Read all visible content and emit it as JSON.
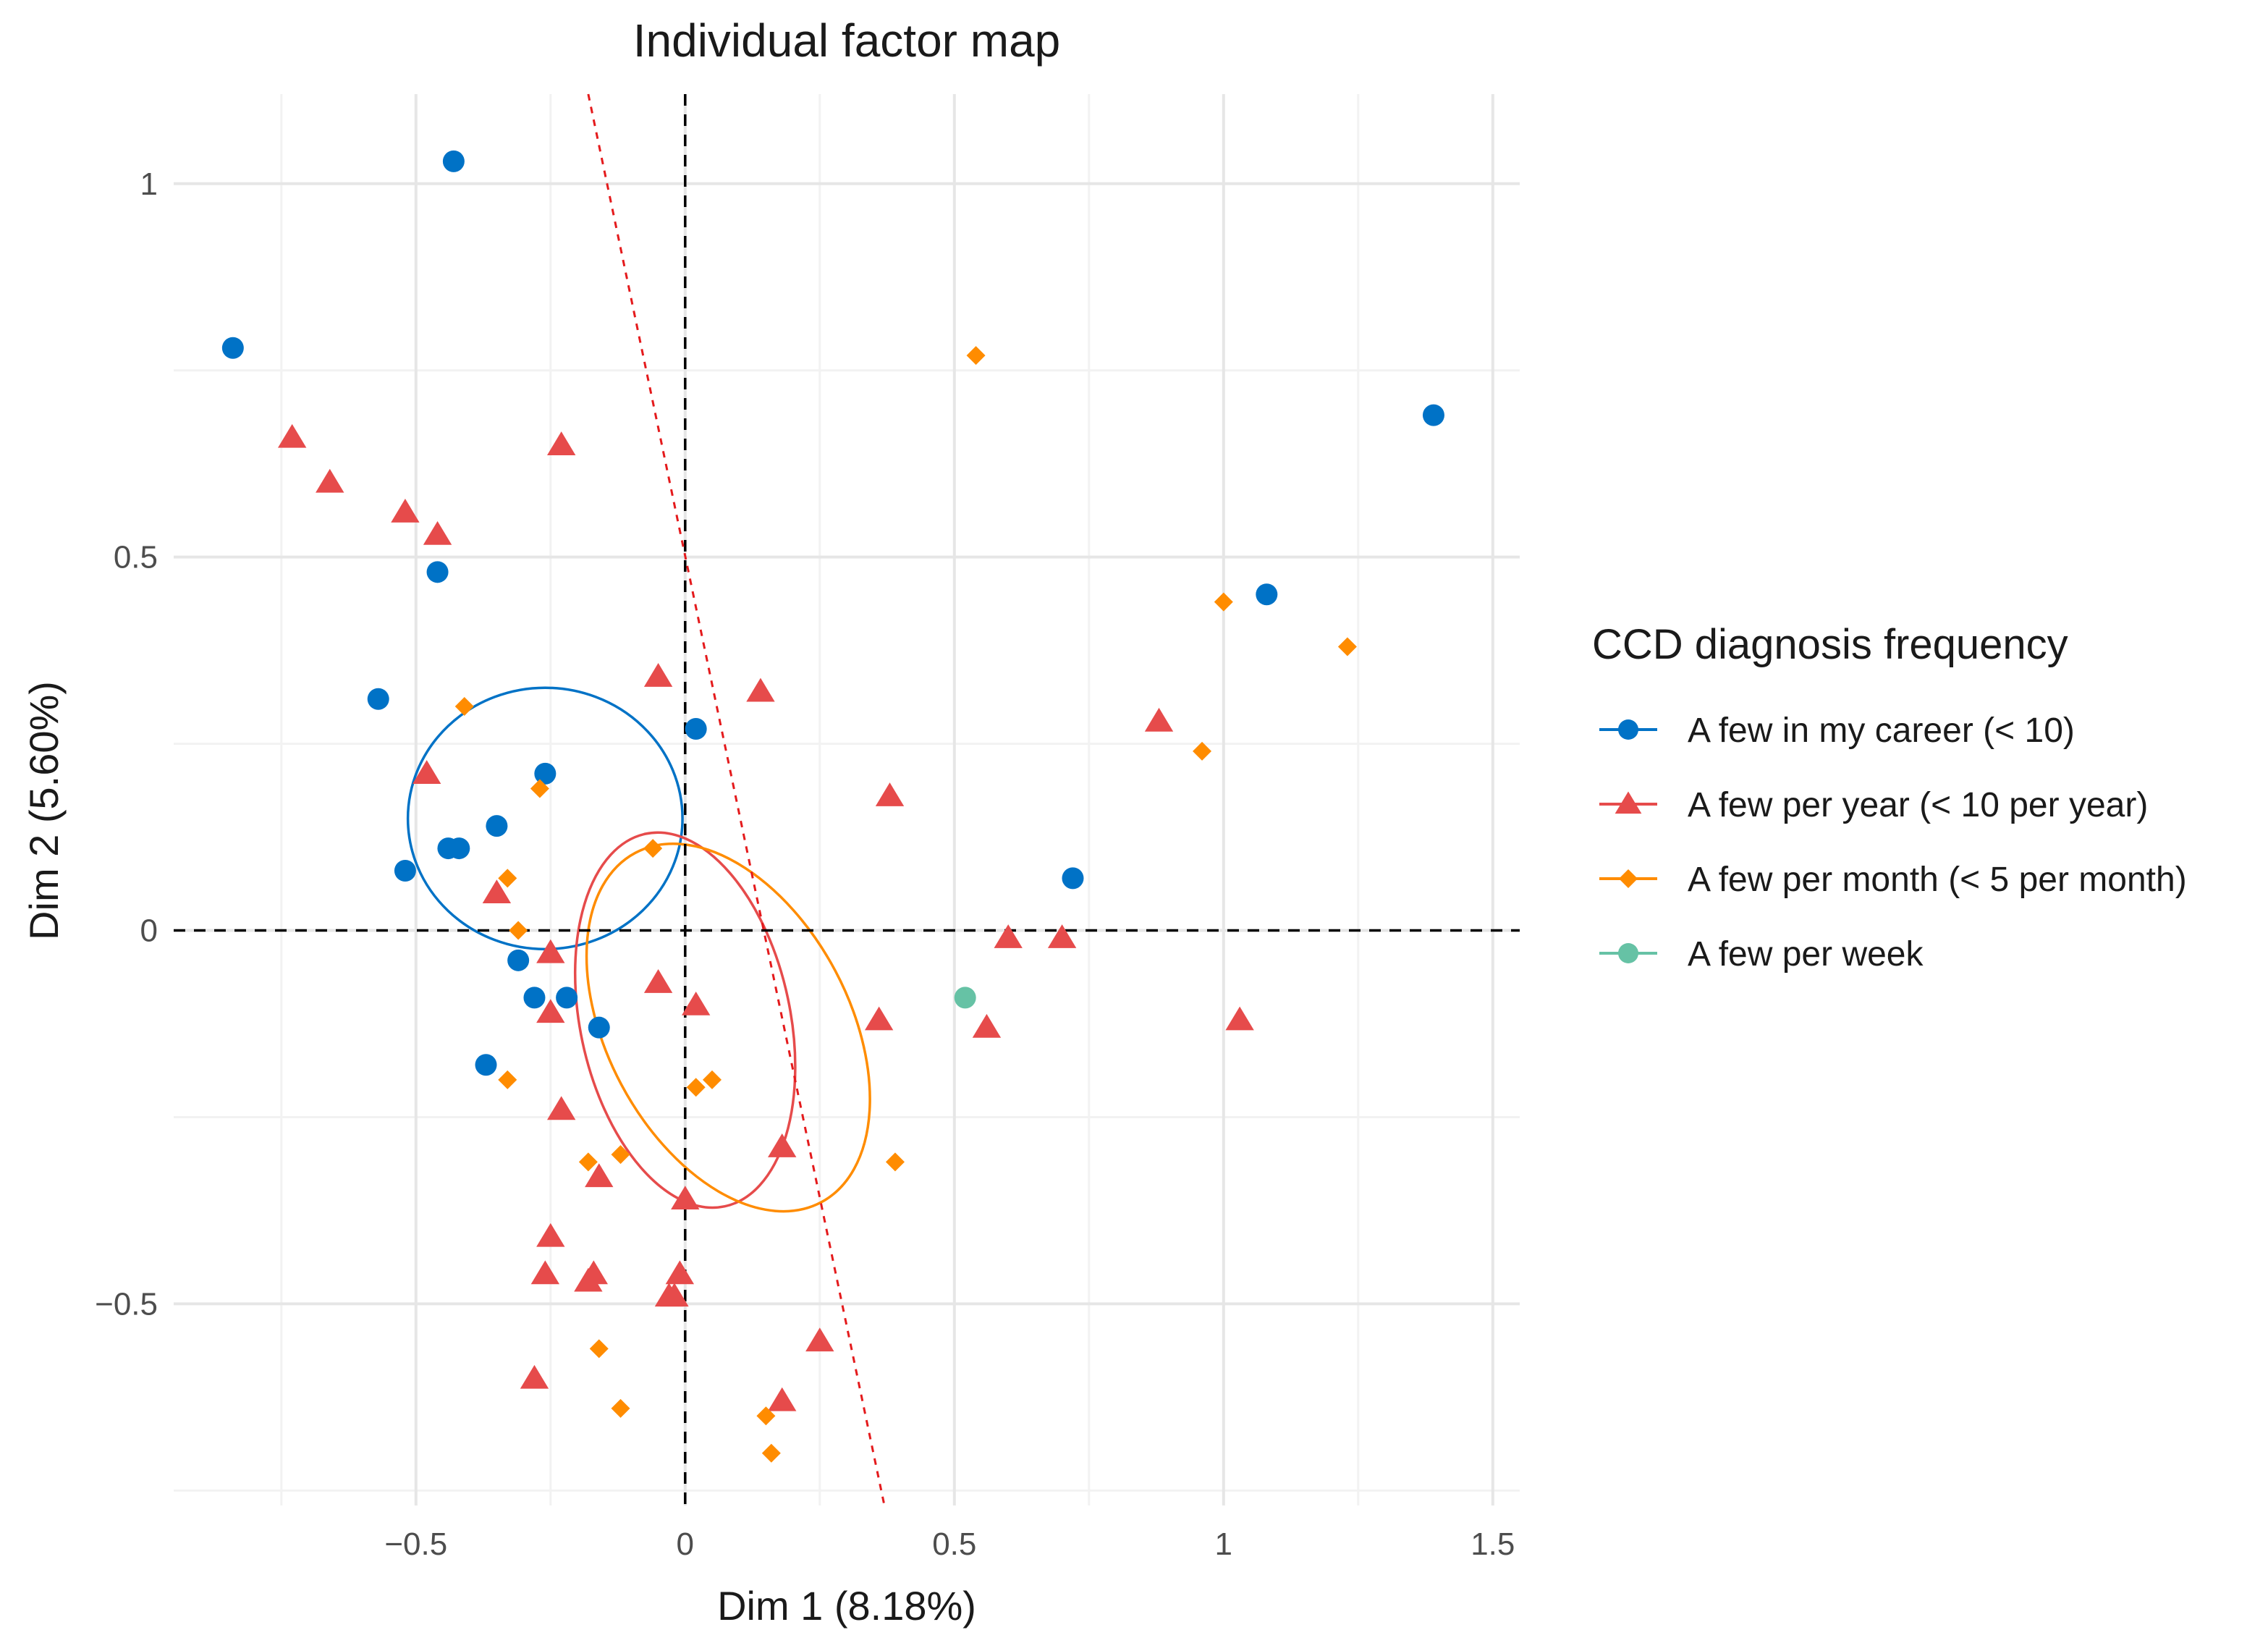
{
  "chart_data": {
    "type": "scatter",
    "title": "Individual factor map",
    "xlabel": "Dim 1 (8.18%)",
    "ylabel": "Dim 2 (5.60%)",
    "xlim": [
      -0.95,
      1.55
    ],
    "ylim": [
      -0.77,
      1.12
    ],
    "x_ticks": [
      -0.5,
      0,
      0.5,
      1,
      1.5
    ],
    "x_tick_labels": [
      "−0.5",
      "0",
      "0.5",
      "1",
      "1.5"
    ],
    "y_ticks": [
      -0.5,
      0,
      0.5,
      1
    ],
    "y_tick_labels": [
      "−0.5",
      "0",
      "0.5",
      "1"
    ],
    "grid": true,
    "legend": {
      "title": "CCD diagnosis frequency",
      "position": "right"
    },
    "reference_lines": [
      {
        "type": "hline",
        "value": 0,
        "style": "dashed",
        "color": "#000000"
      },
      {
        "type": "vline",
        "value": 0,
        "style": "dashed",
        "color": "#000000"
      },
      {
        "type": "segment",
        "from": [
          -0.18,
          1.12
        ],
        "to": [
          0.37,
          -0.77
        ],
        "style": "dotted",
        "color": "#e41a1c"
      }
    ],
    "series": [
      {
        "name": "A few in my career (< 10)",
        "color": "#0072c6",
        "marker": "circle",
        "points": [
          [
            -0.43,
            1.03
          ],
          [
            -0.84,
            0.78
          ],
          [
            1.39,
            0.69
          ],
          [
            1.08,
            0.45
          ],
          [
            -0.46,
            0.48
          ],
          [
            -0.57,
            0.31
          ],
          [
            0.02,
            0.27
          ],
          [
            -0.26,
            0.21
          ],
          [
            -0.35,
            0.14
          ],
          [
            -0.44,
            0.11
          ],
          [
            -0.42,
            0.11
          ],
          [
            -0.52,
            0.08
          ],
          [
            0.72,
            0.07
          ],
          [
            -0.31,
            -0.04
          ],
          [
            -0.28,
            -0.09
          ],
          [
            -0.22,
            -0.09
          ],
          [
            -0.16,
            -0.13
          ],
          [
            -0.37,
            -0.18
          ]
        ],
        "ellipse": {
          "center": [
            -0.26,
            0.15
          ],
          "rx": 0.255,
          "ry": 0.175,
          "angle_deg": 0
        }
      },
      {
        "name": "A few per year (< 10 per year)",
        "color": "#e64b4b",
        "marker": "triangle",
        "points": [
          [
            -0.73,
            0.66
          ],
          [
            -0.66,
            0.6
          ],
          [
            -0.52,
            0.56
          ],
          [
            -0.46,
            0.53
          ],
          [
            -0.23,
            0.65
          ],
          [
            -0.05,
            0.34
          ],
          [
            0.14,
            0.32
          ],
          [
            0.88,
            0.28
          ],
          [
            -0.48,
            0.21
          ],
          [
            0.38,
            0.18
          ],
          [
            -0.35,
            0.05
          ],
          [
            0.6,
            -0.01
          ],
          [
            0.7,
            -0.01
          ],
          [
            -0.25,
            -0.03
          ],
          [
            -0.05,
            -0.07
          ],
          [
            0.02,
            -0.1
          ],
          [
            -0.25,
            -0.11
          ],
          [
            0.36,
            -0.12
          ],
          [
            0.56,
            -0.13
          ],
          [
            1.03,
            -0.12
          ],
          [
            -0.23,
            -0.24
          ],
          [
            0.18,
            -0.29
          ],
          [
            -0.16,
            -0.33
          ],
          [
            0.0,
            -0.36
          ],
          [
            -0.25,
            -0.41
          ],
          [
            -0.26,
            -0.46
          ],
          [
            -0.17,
            -0.46
          ],
          [
            -0.18,
            -0.47
          ],
          [
            -0.01,
            -0.46
          ],
          [
            -0.02,
            -0.49
          ],
          [
            -0.03,
            -0.49
          ],
          [
            0.25,
            -0.55
          ],
          [
            -0.28,
            -0.6
          ],
          [
            0.18,
            -0.63
          ]
        ],
        "ellipse": {
          "center": [
            0.0,
            -0.12
          ],
          "rx": 0.195,
          "ry": 0.255,
          "angle_deg": 12
        }
      },
      {
        "name": "A few per month (< 5 per month)",
        "color": "#ff8c00",
        "marker": "diamond",
        "points": [
          [
            0.54,
            0.77
          ],
          [
            1.0,
            0.44
          ],
          [
            1.23,
            0.38
          ],
          [
            0.96,
            0.24
          ],
          [
            -0.41,
            0.3
          ],
          [
            -0.27,
            0.19
          ],
          [
            -0.06,
            0.11
          ],
          [
            -0.33,
            0.07
          ],
          [
            -0.31,
            0.0
          ],
          [
            0.02,
            -0.21
          ],
          [
            0.05,
            -0.2
          ],
          [
            -0.33,
            -0.2
          ],
          [
            -0.12,
            -0.3
          ],
          [
            -0.18,
            -0.31
          ],
          [
            0.39,
            -0.31
          ],
          [
            -0.16,
            -0.56
          ],
          [
            -0.12,
            -0.64
          ],
          [
            0.15,
            -0.65
          ],
          [
            0.16,
            -0.7
          ]
        ],
        "ellipse": {
          "center": [
            0.08,
            -0.13
          ],
          "rx": 0.225,
          "ry": 0.265,
          "angle_deg": 28
        }
      },
      {
        "name": "A few per week",
        "color": "#66c2a5",
        "marker": "circle",
        "points": [
          [
            0.52,
            -0.09
          ]
        ]
      }
    ]
  }
}
